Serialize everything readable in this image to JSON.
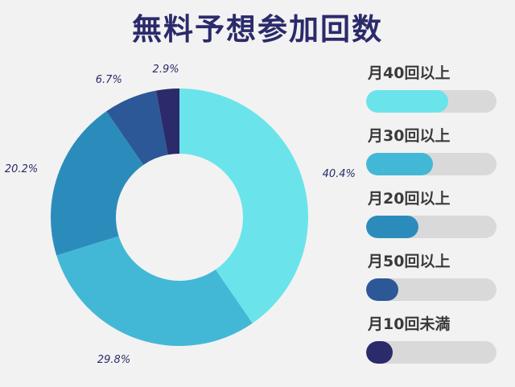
{
  "title": "無料予想参加回数",
  "chart_data": {
    "type": "pie",
    "donut": true,
    "slices": [
      {
        "label": "月40回以上",
        "value": 40.4,
        "value_label": "40.4%",
        "color": "#6ae4ea"
      },
      {
        "label": "月30回以上",
        "value": 29.8,
        "value_label": "29.8%",
        "color": "#42b8d6"
      },
      {
        "label": "月20回以上",
        "value": 20.2,
        "value_label": "20.2%",
        "color": "#2b8cbc"
      },
      {
        "label": "月50回以上",
        "value": 6.7,
        "value_label": "6.7%",
        "color": "#2c5898"
      },
      {
        "label": "月10回未満",
        "value": 2.9,
        "value_label": "2.9%",
        "color": "#2b2a6b"
      }
    ],
    "legend_placement": "right"
  }
}
